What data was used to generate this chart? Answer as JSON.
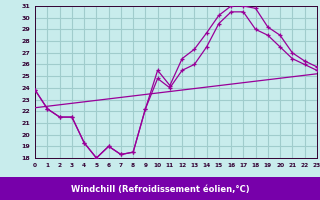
{
  "xlabel": "Windchill (Refroidissement éolien,°C)",
  "bg_color": "#c8ecec",
  "grid_color": "#a0cccc",
  "line_color": "#990099",
  "label_color": "#330033",
  "xlabel_bg_color": "#7700aa",
  "xlim": [
    0,
    23
  ],
  "ylim": [
    18,
    31
  ],
  "xticks": [
    0,
    1,
    2,
    3,
    4,
    5,
    6,
    7,
    8,
    9,
    10,
    11,
    12,
    13,
    14,
    15,
    16,
    17,
    18,
    19,
    20,
    21,
    22,
    23
  ],
  "yticks": [
    18,
    19,
    20,
    21,
    22,
    23,
    24,
    25,
    26,
    27,
    28,
    29,
    30,
    31
  ],
  "line1_x": [
    0,
    1,
    2,
    3,
    4,
    5,
    6,
    7,
    8,
    9,
    10,
    11,
    12,
    13,
    14,
    15,
    16,
    17,
    18,
    19,
    20,
    21,
    22,
    23
  ],
  "line1_y": [
    23.8,
    22.2,
    21.5,
    21.5,
    19.3,
    18.0,
    19.0,
    18.3,
    18.5,
    22.2,
    25.5,
    24.2,
    26.5,
    27.3,
    28.7,
    30.2,
    31.0,
    31.0,
    30.8,
    29.2,
    28.5,
    27.0,
    26.3,
    25.8
  ],
  "line2_x": [
    0,
    1,
    2,
    3,
    4,
    5,
    6,
    7,
    8,
    9,
    10,
    11,
    12,
    13,
    14,
    15,
    16,
    17,
    18,
    19,
    20,
    21,
    22,
    23
  ],
  "line2_y": [
    23.8,
    22.2,
    21.5,
    21.5,
    19.3,
    18.0,
    19.0,
    18.3,
    18.5,
    22.2,
    24.8,
    24.0,
    25.5,
    26.0,
    27.5,
    29.5,
    30.5,
    30.5,
    29.0,
    28.5,
    27.5,
    26.5,
    26.0,
    25.5
  ],
  "line3_x": [
    0,
    23
  ],
  "line3_y": [
    22.3,
    25.2
  ]
}
